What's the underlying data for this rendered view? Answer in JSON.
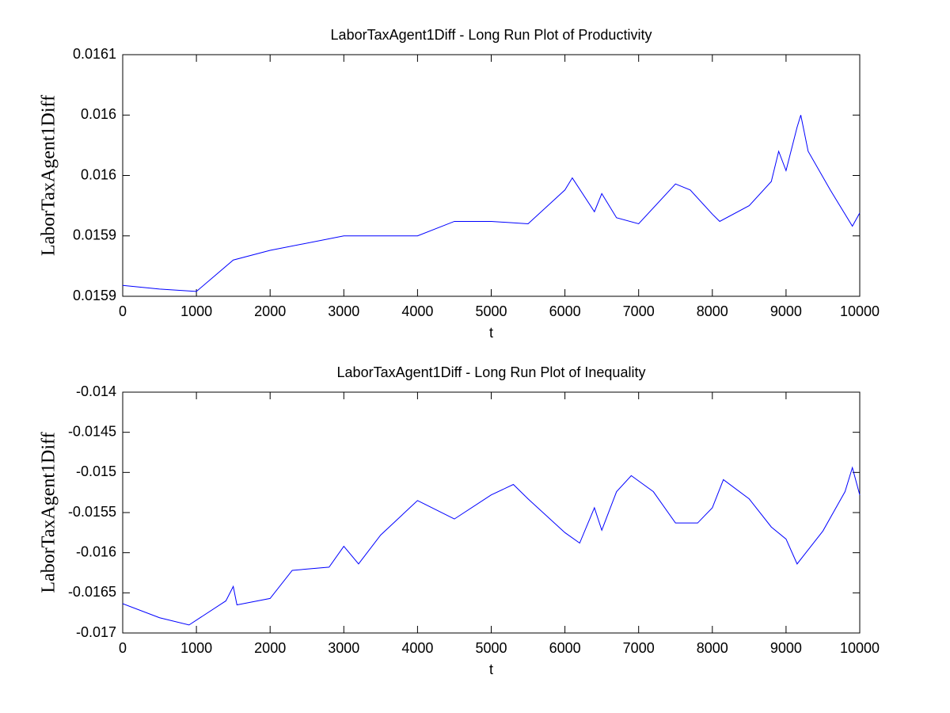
{
  "chart_data": [
    {
      "type": "line",
      "title": "LaborTaxAgent1Diff - Long Run Plot of Productivity",
      "xlabel": "t",
      "ylabel": "LaborTaxAgent1Diff",
      "color": "#0000ff",
      "x": [
        0,
        500,
        1000,
        1500,
        2000,
        3000,
        4000,
        4500,
        5000,
        5500,
        6000,
        6100,
        6400,
        6500,
        6700,
        7000,
        7500,
        7700,
        8000,
        8100,
        8500,
        8800,
        8900,
        9000,
        9150,
        9200,
        9300,
        9600,
        9900,
        10000
      ],
      "values": [
        0.015909,
        0.015906,
        0.015904,
        0.01593,
        0.015938,
        0.01595,
        0.01595,
        0.015962,
        0.015962,
        0.01596,
        0.015988,
        0.015998,
        0.01597,
        0.015985,
        0.015965,
        0.01596,
        0.015993,
        0.015988,
        0.015968,
        0.015962,
        0.015975,
        0.015995,
        0.01602,
        0.016004,
        0.01604,
        0.01605,
        0.01602,
        0.015988,
        0.015958,
        0.015969
      ],
      "xlim": [
        0,
        10000
      ],
      "xticks": [
        0,
        1000,
        2000,
        3000,
        4000,
        5000,
        6000,
        7000,
        8000,
        9000,
        10000
      ],
      "ylim": [
        0.0159,
        0.0161
      ],
      "yticks": [
        0.0159,
        {
          "value": 0.01595,
          "label": "0.0159"
        },
        0.016,
        {
          "value": 0.01605,
          "label": "0.016"
        },
        0.0161
      ],
      "grid": false
    },
    {
      "type": "line",
      "title": "LaborTaxAgent1Diff - Long Run Plot of Inequality",
      "xlabel": "t",
      "ylabel": "LaborTaxAgent1Diff",
      "color": "#0000ff",
      "x": [
        0,
        500,
        900,
        1400,
        1500,
        1550,
        2000,
        2300,
        2800,
        3000,
        3200,
        3500,
        4000,
        4500,
        5000,
        5300,
        5500,
        6000,
        6200,
        6400,
        6500,
        6700,
        6900,
        7200,
        7500,
        7800,
        8000,
        8150,
        8500,
        8800,
        9000,
        9150,
        9500,
        9800,
        9900,
        10000
      ],
      "values": [
        -0.016635,
        -0.01681,
        -0.0169,
        -0.0166,
        -0.01642,
        -0.01665,
        -0.01657,
        -0.01622,
        -0.01618,
        -0.01592,
        -0.01614,
        -0.01578,
        -0.01535,
        -0.01558,
        -0.01528,
        -0.01515,
        -0.01533,
        -0.01575,
        -0.01588,
        -0.01544,
        -0.01572,
        -0.01524,
        -0.01504,
        -0.01524,
        -0.01563,
        -0.01563,
        -0.01544,
        -0.01509,
        -0.01533,
        -0.01568,
        -0.01583,
        -0.01614,
        -0.01573,
        -0.01524,
        -0.01494,
        -0.01528
      ],
      "xlim": [
        0,
        10000
      ],
      "xticks": [
        0,
        1000,
        2000,
        3000,
        4000,
        5000,
        6000,
        7000,
        8000,
        9000,
        10000
      ],
      "ylim": [
        -0.017,
        -0.014
      ],
      "yticks": [
        -0.017,
        -0.0165,
        -0.016,
        -0.0155,
        -0.015,
        -0.0145,
        -0.014
      ],
      "grid": false
    }
  ]
}
